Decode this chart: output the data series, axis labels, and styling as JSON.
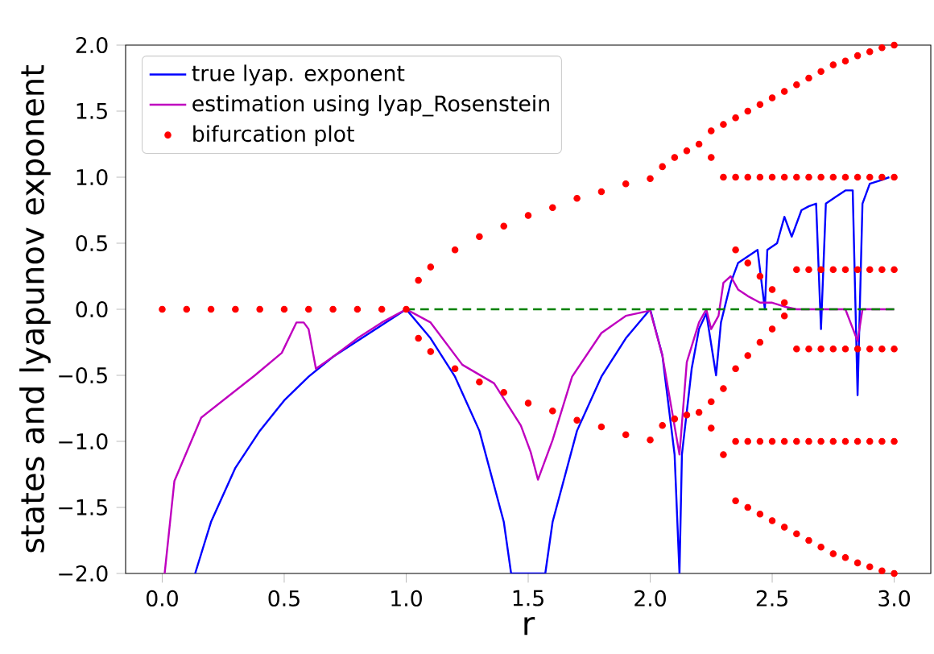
{
  "chart_data": {
    "type": "line",
    "xlabel": "r",
    "ylabel": "states and lyapunov exponent",
    "xlim": [
      -0.15,
      3.15
    ],
    "ylim": [
      -2.0,
      2.0
    ],
    "xticks": [
      {
        "value": 0,
        "label": "0.0"
      },
      {
        "value": 0.5,
        "label": "0.5"
      },
      {
        "value": 1,
        "label": "1.0"
      },
      {
        "value": 1.5,
        "label": "1.5"
      },
      {
        "value": 2,
        "label": "2.0"
      },
      {
        "value": 2.5,
        "label": "2.5"
      },
      {
        "value": 3,
        "label": "3.0"
      }
    ],
    "yticks": [
      {
        "value": -2,
        "label": "−2.0"
      },
      {
        "value": -1.5,
        "label": "−1.5"
      },
      {
        "value": -1,
        "label": "−1.0"
      },
      {
        "value": -0.5,
        "label": "−0.5"
      },
      {
        "value": 0,
        "label": "0.0"
      },
      {
        "value": 0.5,
        "label": "0.5"
      },
      {
        "value": 1,
        "label": "1.0"
      },
      {
        "value": 1.5,
        "label": "1.5"
      },
      {
        "value": 2,
        "label": "2.0"
      }
    ],
    "legend": "top left",
    "grid": false,
    "series": [
      {
        "name": "true lyap. exponent",
        "color": "#0000ff",
        "marker": "none",
        "line_style": "solid",
        "x": [
          0.135,
          0.2,
          0.3,
          0.4,
          0.5,
          0.6,
          0.7,
          0.8,
          0.9,
          1.0,
          1.1,
          1.2,
          1.3,
          1.4,
          1.43,
          1.57,
          1.6,
          1.7,
          1.8,
          1.9,
          2.0,
          2.05,
          2.1,
          2.12,
          2.13,
          2.17,
          2.2,
          2.23,
          2.27,
          2.29,
          2.33,
          2.36,
          2.4,
          2.44,
          2.47,
          2.48,
          2.52,
          2.55,
          2.58,
          2.62,
          2.65,
          2.68,
          2.7,
          2.72,
          2.76,
          2.8,
          2.83,
          2.85,
          2.87,
          2.9,
          2.95,
          2.98
        ],
        "values": [
          -2.0,
          -1.61,
          -1.2,
          -0.92,
          -0.69,
          -0.51,
          -0.36,
          null,
          null,
          0.0,
          -0.22,
          -0.51,
          -0.92,
          -1.61,
          -2.0,
          -2.0,
          -1.61,
          -0.92,
          -0.51,
          -0.22,
          0.0,
          -0.35,
          -1.1,
          -2.0,
          -1.1,
          -0.45,
          -0.15,
          -0.03,
          -0.5,
          -0.1,
          0.2,
          0.35,
          0.4,
          0.45,
          0.0,
          0.45,
          0.5,
          0.7,
          0.55,
          0.75,
          0.78,
          0.8,
          -0.15,
          0.8,
          0.85,
          0.9,
          0.9,
          -0.65,
          0.8,
          0.95,
          0.98,
          1.0
        ]
      },
      {
        "name": "estimation using lyap_Rosenstein",
        "color": "#bf00bf",
        "marker": "none",
        "line_style": "solid",
        "x": [
          0.01,
          0.05,
          0.16,
          0.38,
          0.49,
          0.55,
          0.58,
          0.6,
          0.63,
          0.7,
          0.8,
          0.9,
          1.0,
          1.1,
          1.23,
          1.36,
          1.47,
          1.51,
          1.54,
          1.6,
          1.68,
          1.8,
          1.9,
          2.0,
          2.05,
          2.12,
          2.15,
          2.2,
          2.23,
          2.25,
          2.28,
          2.3,
          2.33,
          2.36,
          2.4,
          2.45,
          2.5,
          2.55,
          2.6,
          2.7,
          2.8,
          2.85,
          2.87,
          2.9,
          3.0
        ],
        "values": [
          -2.0,
          -1.3,
          -0.82,
          -0.5,
          -0.33,
          -0.1,
          -0.1,
          -0.15,
          -0.45,
          -0.36,
          -0.22,
          -0.1,
          0.0,
          -0.1,
          -0.42,
          -0.56,
          -0.88,
          -1.08,
          -1.29,
          -0.99,
          -0.51,
          -0.18,
          -0.05,
          -0.01,
          -0.35,
          -1.1,
          -0.4,
          -0.1,
          0.0,
          -0.15,
          -0.05,
          0.2,
          0.25,
          0.15,
          0.1,
          0.05,
          0.05,
          0.02,
          0.0,
          0.0,
          0.0,
          -0.24,
          0.0,
          0.0,
          0.0
        ]
      },
      {
        "name": "bifurcation plot",
        "color": "#ff0000",
        "type": "scatter",
        "marker": "circle",
        "x": [
          0,
          0.1,
          0.2,
          0.3,
          0.4,
          0.5,
          0.6,
          0.7,
          0.8,
          0.9,
          1.0,
          1.05,
          1.1,
          1.2,
          1.3,
          1.4,
          1.5,
          1.6,
          1.7,
          1.8,
          1.9,
          2.0,
          1.05,
          1.1,
          1.2,
          1.3,
          1.4,
          1.5,
          1.6,
          1.7,
          1.8,
          1.9,
          2.0,
          2.05,
          2.1,
          2.15,
          2.2,
          2.05,
          2.1,
          2.15,
          2.2,
          2.25,
          2.25,
          2.3,
          2.3,
          2.25,
          2.25,
          2.3,
          2.3,
          2.35,
          2.4,
          2.45,
          2.5,
          2.55,
          2.35,
          2.4,
          2.45,
          2.5,
          2.55,
          2.35,
          2.4,
          2.45,
          2.5,
          2.55,
          2.35,
          2.4,
          2.45,
          2.5,
          2.55,
          2.35,
          2.4,
          2.45,
          2.5,
          2.55,
          2.35,
          2.4,
          2.45,
          2.5,
          2.55,
          2.6,
          2.65,
          2.7,
          2.75,
          2.8,
          2.85,
          2.9,
          2.95,
          3.0,
          2.6,
          2.65,
          2.7,
          2.75,
          2.8,
          2.85,
          2.9,
          2.95,
          3.0,
          2.6,
          2.65,
          2.7,
          2.75,
          2.8,
          2.85,
          2.9,
          2.95,
          3.0,
          2.6,
          2.65,
          2.7,
          2.75,
          2.8,
          2.85,
          2.9,
          2.95,
          3.0,
          2.6,
          2.65,
          2.7,
          2.75,
          2.8,
          2.85,
          2.9,
          2.95,
          3.0,
          2.6,
          2.65,
          2.7,
          2.75,
          2.8,
          2.85,
          2.9,
          2.95,
          3.0
        ],
        "values": [
          0,
          0,
          0,
          0,
          0,
          0,
          0,
          0,
          0,
          0,
          0,
          0.22,
          0.32,
          0.45,
          0.55,
          0.63,
          0.71,
          0.77,
          0.84,
          0.89,
          0.95,
          0.99,
          -0.22,
          -0.32,
          -0.45,
          -0.55,
          -0.63,
          -0.71,
          -0.77,
          -0.84,
          -0.89,
          -0.95,
          -0.99,
          1.08,
          1.15,
          1.2,
          1.25,
          -0.88,
          -0.83,
          -0.8,
          -0.78,
          1.35,
          1.15,
          1.4,
          1.0,
          -0.7,
          -0.9,
          -0.6,
          -1.1,
          1.45,
          1.5,
          1.55,
          1.6,
          1.65,
          0.45,
          0.35,
          0.25,
          0.15,
          0.05,
          1.0,
          1.0,
          1.0,
          1.0,
          1.0,
          -1.45,
          -1.5,
          -1.55,
          -1.6,
          -1.65,
          -0.45,
          -0.35,
          -0.25,
          -0.15,
          -0.05,
          -1.0,
          -1.0,
          -1.0,
          -1.0,
          -1.0,
          1.7,
          1.75,
          1.8,
          1.85,
          1.88,
          1.92,
          1.95,
          1.98,
          2.0,
          1.0,
          1.0,
          1.0,
          1.0,
          1.0,
          1.0,
          1.0,
          1.0,
          1.0,
          0.3,
          0.3,
          0.3,
          0.3,
          0.3,
          0.3,
          0.3,
          0.3,
          0.3,
          -0.3,
          -0.3,
          -0.3,
          -0.3,
          -0.3,
          -0.3,
          -0.3,
          -0.3,
          -0.3,
          -1.0,
          -1.0,
          -1.0,
          -1.0,
          -1.0,
          -1.0,
          -1.0,
          -1.0,
          -1.0,
          -1.7,
          -1.75,
          -1.8,
          -1.85,
          -1.88,
          -1.92,
          -1.95,
          -1.98,
          -2.0
        ]
      },
      {
        "color": "#008000",
        "marker": "none",
        "line_style": "dashed",
        "x": [
          1.0,
          3.0
        ],
        "values": [
          0.0,
          0.0
        ]
      }
    ]
  }
}
